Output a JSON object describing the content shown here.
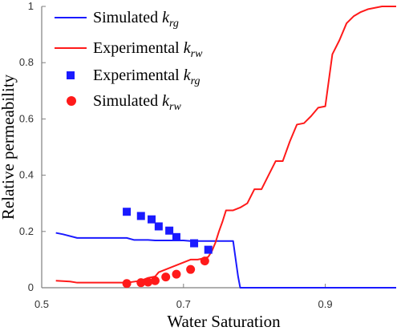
{
  "chart_data": {
    "type": "line",
    "xlabel": "Water Saturation",
    "ylabel": "Relative permeability",
    "xlim": [
      0.5,
      1.0
    ],
    "ylim": [
      0,
      1
    ],
    "xticks": [
      "0.5",
      "0.7",
      "0.9"
    ],
    "yticks": [
      "0",
      "0.2",
      "0.4",
      "0.6",
      "0.8",
      "1"
    ],
    "grid": false,
    "legend_position": "top-left",
    "series": [
      {
        "name": "Simulated krg",
        "legend_main": "Simulated ",
        "legend_sub": "rg",
        "type": "line",
        "color": "#1a1aff",
        "x": [
          0.52,
          0.53,
          0.55,
          0.57,
          0.6,
          0.62,
          0.63,
          0.65,
          0.66,
          0.68,
          0.7,
          0.71,
          0.72,
          0.73,
          0.74,
          0.76,
          0.77,
          0.777,
          0.78,
          0.8,
          0.85,
          0.9,
          0.95,
          1.0
        ],
        "y": [
          0.195,
          0.19,
          0.177,
          0.177,
          0.177,
          0.177,
          0.17,
          0.17,
          0.168,
          0.168,
          0.168,
          0.166,
          0.166,
          0.166,
          0.166,
          0.166,
          0.166,
          0.04,
          0.0,
          0.0,
          0.0,
          0.0,
          0.0,
          0.0
        ]
      },
      {
        "name": "Experimental krw",
        "legend_main": "Experimental ",
        "legend_sub": "rw",
        "type": "line",
        "color": "#ff1a1a",
        "x": [
          0.52,
          0.54,
          0.55,
          0.57,
          0.6,
          0.62,
          0.64,
          0.65,
          0.66,
          0.665,
          0.67,
          0.68,
          0.69,
          0.7,
          0.71,
          0.72,
          0.73,
          0.735,
          0.74,
          0.745,
          0.75,
          0.755,
          0.76,
          0.765,
          0.77,
          0.78,
          0.79,
          0.8,
          0.81,
          0.82,
          0.83,
          0.84,
          0.85,
          0.86,
          0.87,
          0.88,
          0.89,
          0.9,
          0.91,
          0.92,
          0.93,
          0.94,
          0.95,
          0.96,
          0.97,
          0.98,
          0.99,
          1.0
        ],
        "y": [
          0.025,
          0.022,
          0.018,
          0.018,
          0.018,
          0.018,
          0.025,
          0.035,
          0.04,
          0.055,
          0.06,
          0.07,
          0.08,
          0.09,
          0.1,
          0.1,
          0.105,
          0.11,
          0.13,
          0.16,
          0.2,
          0.235,
          0.275,
          0.275,
          0.275,
          0.285,
          0.3,
          0.35,
          0.35,
          0.4,
          0.45,
          0.45,
          0.52,
          0.58,
          0.585,
          0.61,
          0.64,
          0.645,
          0.83,
          0.88,
          0.94,
          0.965,
          0.98,
          0.99,
          0.995,
          1.0,
          1.0,
          1.0
        ]
      },
      {
        "name": "Experimental krg",
        "legend_main": "Experimental ",
        "legend_sub": "rg",
        "type": "scatter",
        "marker": "square",
        "color": "#1a1aff",
        "x": [
          0.62,
          0.64,
          0.655,
          0.665,
          0.68,
          0.69,
          0.715,
          0.735
        ],
        "y": [
          0.27,
          0.255,
          0.243,
          0.218,
          0.203,
          0.18,
          0.158,
          0.135
        ]
      },
      {
        "name": "Simulated krw",
        "legend_main": "Simulated ",
        "legend_sub": "rw",
        "type": "scatter",
        "marker": "circle",
        "color": "#ff1a1a",
        "x": [
          0.62,
          0.64,
          0.65,
          0.66,
          0.675,
          0.69,
          0.71,
          0.73
        ],
        "y": [
          0.015,
          0.018,
          0.02,
          0.025,
          0.038,
          0.048,
          0.065,
          0.095
        ]
      }
    ]
  }
}
